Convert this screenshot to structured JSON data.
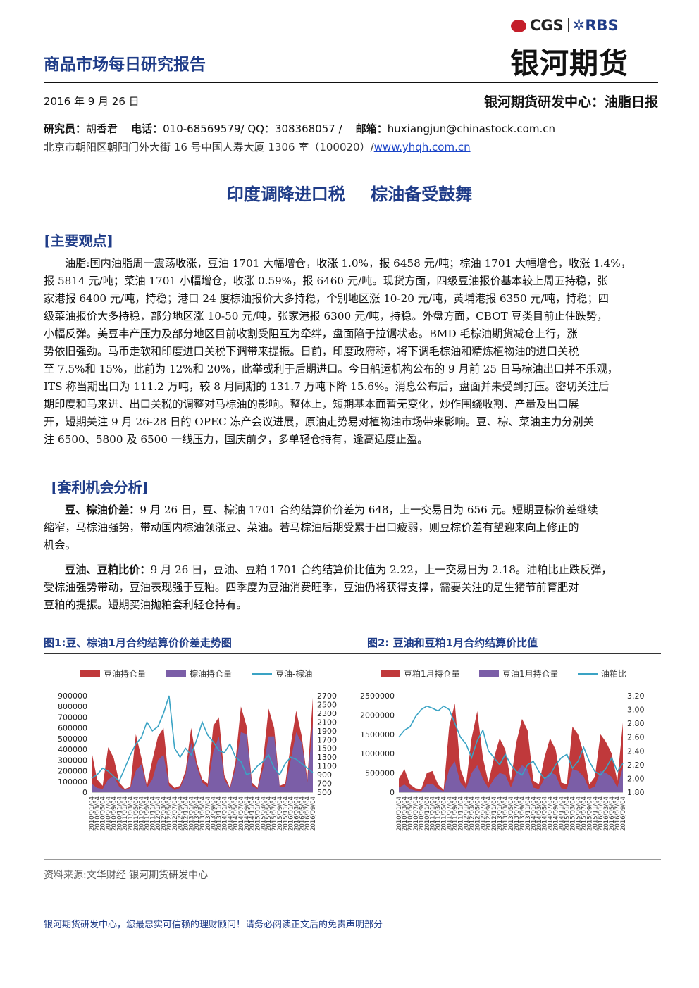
{
  "header": {
    "report_title": "商品市场每日研究报告",
    "logo_cgs": "CGS",
    "logo_rbs": "RBS",
    "logo_cn": "银河期货",
    "date": "2016 年 9 月 26 日",
    "dept": "银河期货研发中心：油脂日报",
    "researcher_label": "研究员：",
    "researcher": "胡香君",
    "phone_label": "电话：",
    "phone": "010-68569579/ QQ：308368057 /",
    "email_label": "邮箱：",
    "email": "huxiangjun@chinastock.com.cn",
    "address": "北京市朝阳区朝阳门外大街 16 号中国人寿大厦 1306 室（100020）/",
    "website": "www.yhqh.com.cn"
  },
  "headline": "印度调降进口税 棕油备受鼓舞",
  "section1": {
    "title": "[主要观点]",
    "lines": [
      "油脂:国内油脂周一震荡收涨，豆油 1701 大幅增仓，收涨 1.0%，报 6458 元/吨；棕油 1701 大幅增仓，收涨 1.4%，",
      "报 5814 元/吨；菜油 1701 小幅增仓，收涨 0.59%，报 6460 元/吨。现货方面，四级豆油报价基本较上周五持稳，张",
      "家港报 6400 元/吨，持稳；港口 24 度棕油报价大多持稳，个别地区涨 10-20 元/吨，黄埔港报 6350 元/吨，持稳；四",
      "级菜油报价大多持稳，部分地区涨 10-50 元/吨，张家港报 6300 元/吨，持稳。外盘方面，CBOT 豆类目前止住跌势，",
      "小幅反弹。美豆丰产压力及部分地区目前收割受阻互为牵绊，盘面陷于拉锯状态。BMD 毛棕油期货减仓上行，涨",
      "势依旧强劲。马币走软和印度进口关税下调带来提振。日前，印度政府称，将下调毛棕油和精炼植物油的进口关税",
      "至 7.5%和 15%，此前为 12%和 20%，此举或利于后期进口。今日船运机构公布的 9 月前 25 日马棕油出口并不乐观，",
      "ITS 称当期出口为 111.2 万吨，较 8 月同期的 131.7 万吨下降 15.6%。消息公布后，盘面并未受到打压。密切关注后",
      "期印度和马来进、出口关税的调整对马棕油的影响。整体上，短期基本面暂无变化，炒作围绕收割、产量及出口展",
      "开，短期关注 9 月 26-28 日的 OPEC 冻产会议进展，原油走势易对植物油市场带来影响。豆、棕、菜油主力分别关",
      "注 6500、5800 及 6500 一线压力，国庆前夕，多单轻仓持有，逢高适度止盈。"
    ]
  },
  "section2": {
    "title": "[套利机会分析]",
    "p1_label": "豆、棕油价差：",
    "p1_lines": [
      "9 月 26 日，豆、棕油 1701 合约结算价价差为 648，上一交易日为 656 元。短期豆棕价差继续",
      "缩窄，马棕油强势，带动国内棕油领涨豆、菜油。若马棕油后期受累于出口疲弱，则豆棕价差有望迎来向上修正的",
      "机会。"
    ],
    "p2_label": "豆油、豆粕比价：",
    "p2_lines": [
      "9 月 26 日，豆油、豆粕 1701 合约结算价比值为 2.22，上一交易日为 2.18。油粕比止跌反弹，",
      "受棕油强势带动，豆油表现强于豆粕。四季度为豆油消费旺季，豆油仍将获得支撑，需要关注的是生猪节前育肥对",
      "豆粕的提振。短期买油抛粕套利轻仓持有。"
    ]
  },
  "chart_data": [
    {
      "type": "area",
      "title": "图1:豆、棕油1月合约结算价价差走势图",
      "legend": [
        "豆油持仓量",
        "棕油持仓量",
        "豆油-棕油"
      ],
      "legend_position": "top",
      "colors": {
        "soy_oi": "#c0393b",
        "palm_oi": "#7b5ea7",
        "spread": "#3aa3c4"
      },
      "y_left": {
        "ylim": [
          0,
          900000
        ],
        "ticks": [
          "0",
          "100000",
          "200000",
          "300000",
          "400000",
          "500000",
          "600000",
          "700000",
          "800000",
          "900000"
        ]
      },
      "y_right": {
        "ylim": [
          500,
          2700
        ],
        "ticks": [
          "500",
          "700",
          "900",
          "1100",
          "1300",
          "1500",
          "1700",
          "1900",
          "2100",
          "2300",
          "2500",
          "2700"
        ]
      },
      "x_ticks": [
        "2010/01/04",
        "2010/03/04",
        "2010/05/04",
        "2010/07/04",
        "2010/09/04",
        "2010/11/04",
        "2011/01/04",
        "2011/03/04",
        "2011/05/04",
        "2011/07/04",
        "2011/09/04",
        "2011/11/04",
        "2012/01/04",
        "2012/03/04",
        "2012/05/04",
        "2012/07/04",
        "2012/09/04",
        "2012/11/04",
        "2013/01/04",
        "2013/03/04",
        "2013/05/04",
        "2013/07/04",
        "2013/09/04",
        "2013/11/04",
        "2014/01/04",
        "2014/03/04",
        "2014/05/04",
        "2014/07/04",
        "2014/09/04",
        "2014/11/04",
        "2015/01/04",
        "2015/03/04",
        "2015/05/04",
        "2015/07/04",
        "2015/09/04",
        "2015/11/04",
        "2016/01/04",
        "2016/03/04",
        "2016/05/04",
        "2016/07/04",
        "2016/09/04"
      ],
      "soy_oi": [
        380000,
        120000,
        60000,
        420000,
        320000,
        90000,
        30000,
        50000,
        540000,
        320000,
        60000,
        300000,
        520000,
        600000,
        90000,
        40000,
        60000,
        200000,
        600000,
        280000,
        120000,
        80000,
        620000,
        700000,
        160000,
        40000,
        280000,
        800000,
        620000,
        90000,
        40000,
        300000,
        780000,
        600000,
        60000,
        80000,
        440000,
        760000,
        520000,
        120000,
        880000
      ],
      "palm_oi": [
        80000,
        40000,
        30000,
        120000,
        150000,
        50000,
        20000,
        40000,
        200000,
        260000,
        40000,
        120000,
        300000,
        350000,
        60000,
        20000,
        40000,
        160000,
        460000,
        240000,
        90000,
        50000,
        380000,
        520000,
        120000,
        30000,
        220000,
        560000,
        540000,
        60000,
        30000,
        220000,
        520000,
        520000,
        50000,
        50000,
        300000,
        560000,
        460000,
        90000,
        640000
      ],
      "spread": [
        820,
        900,
        1050,
        980,
        860,
        760,
        1050,
        1350,
        1600,
        1750,
        2100,
        1900,
        2000,
        2300,
        2700,
        1500,
        1300,
        1500,
        1350,
        1700,
        2100,
        1800,
        1650,
        1450,
        1400,
        1600,
        1300,
        1200,
        900,
        950,
        1100,
        1200,
        1350,
        1050,
        900,
        1150,
        1300,
        1250,
        1150,
        1050,
        950
      ]
    },
    {
      "type": "area",
      "title": "图2: 豆油和豆粕1月合约结算价比值",
      "legend": [
        "豆粕1月持仓量",
        "豆油1月持仓量",
        "油粕比"
      ],
      "legend_position": "top",
      "colors": {
        "meal_oi": "#c0393b",
        "oil_oi": "#7b5ea7",
        "ratio": "#3aa3c4"
      },
      "y_left": {
        "ylim": [
          0,
          2500000
        ],
        "ticks": [
          "0",
          "500000",
          "1000000",
          "1500000",
          "2000000",
          "2500000"
        ]
      },
      "y_right": {
        "ylim": [
          1.8,
          3.2
        ],
        "ticks": [
          "1.80",
          "2.00",
          "2.20",
          "2.40",
          "2.60",
          "2.80",
          "3.00",
          "3.20"
        ]
      },
      "x_ticks": [
        "2010/01/04",
        "2010/03/04",
        "2010/05/04",
        "2010/07/04",
        "2010/09/04",
        "2010/11/04",
        "2011/01/04",
        "2011/03/04",
        "2011/05/04",
        "2011/07/04",
        "2011/09/04",
        "2011/11/04",
        "2012/01/04",
        "2012/03/04",
        "2012/05/04",
        "2012/07/04",
        "2012/09/04",
        "2012/11/04",
        "2013/01/04",
        "2013/03/04",
        "2013/05/04",
        "2013/07/04",
        "2013/09/04",
        "2013/11/04",
        "2014/01/04",
        "2014/03/04",
        "2014/05/04",
        "2014/07/04",
        "2014/09/04",
        "2014/11/04",
        "2015/01/04",
        "2015/03/04",
        "2015/05/04",
        "2015/07/04",
        "2015/09/04",
        "2015/11/04",
        "2016/01/04",
        "2016/03/04",
        "2016/05/04",
        "2016/07/04",
        "2016/09/04"
      ],
      "meal_oi": [
        350000,
        600000,
        200000,
        100000,
        80000,
        500000,
        550000,
        200000,
        60000,
        1700000,
        2300000,
        600000,
        200000,
        1400000,
        2100000,
        900000,
        250000,
        900000,
        1400000,
        1100000,
        300000,
        1300000,
        1900000,
        1600000,
        300000,
        200000,
        900000,
        1400000,
        1100000,
        250000,
        200000,
        1700000,
        1500000,
        1000000,
        200000,
        400000,
        1500000,
        1300000,
        1000000,
        300000,
        1800000
      ],
      "oil_oi": [
        120000,
        200000,
        80000,
        40000,
        30000,
        200000,
        220000,
        80000,
        30000,
        600000,
        800000,
        250000,
        80000,
        500000,
        700000,
        350000,
        100000,
        350000,
        500000,
        450000,
        120000,
        500000,
        700000,
        600000,
        120000,
        80000,
        350000,
        520000,
        450000,
        100000,
        80000,
        600000,
        550000,
        400000,
        80000,
        150000,
        550000,
        500000,
        400000,
        120000,
        650000
      ],
      "ratio": [
        2.6,
        2.7,
        2.75,
        2.9,
        3.0,
        3.05,
        3.02,
        2.98,
        3.05,
        3.0,
        2.8,
        2.6,
        2.5,
        2.3,
        2.55,
        2.7,
        2.4,
        2.3,
        2.2,
        2.35,
        2.2,
        2.1,
        2.05,
        2.2,
        2.25,
        2.1,
        2.0,
        2.05,
        2.2,
        2.3,
        2.35,
        2.15,
        2.25,
        2.45,
        2.25,
        2.1,
        2.05,
        2.15,
        2.3,
        2.1,
        2.22
      ]
    }
  ],
  "source": "资料来源:文华财经   银河期货研发中心",
  "footer": "银河期货研发中心，您最忠实可信赖的理财顾问！请务必阅读正文后的免责声明部分"
}
